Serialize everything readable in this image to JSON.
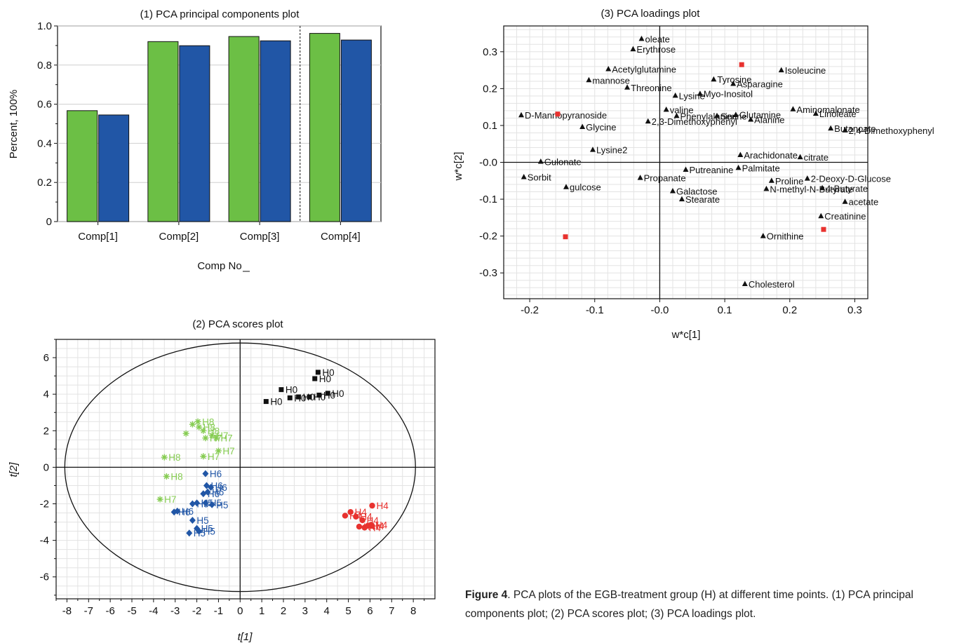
{
  "colors": {
    "green": "#6cbf45",
    "blue": "#2156a6",
    "black": "#111111",
    "red": "#e8322f",
    "lightgreen": "#86cc52",
    "grid": "#dddddd"
  },
  "caption": {
    "label": "Figure 4",
    "text": ". PCA plots of the EGB-treatment group (H) at different time points. (1) PCA principal components plot; (2) PCA scores plot; (3) PCA loadings plot."
  },
  "chart_data": [
    {
      "type": "bar",
      "title": "(1) PCA principal components plot",
      "xlabel": "Comp No",
      "ylabel": "Percent, 100%",
      "ylim": [
        0,
        1.0
      ],
      "yticks": [
        "0",
        "0.2",
        "0.4",
        "0.6",
        "0.8",
        "1.0"
      ],
      "categories": [
        "Comp[1]",
        "Comp[2]",
        "Comp[3]",
        "Comp[4]"
      ],
      "series": [
        {
          "color": "#6cbf45",
          "values": [
            0.567,
            0.92,
            0.946,
            0.962
          ]
        },
        {
          "color": "#2156a6",
          "values": [
            0.545,
            0.899,
            0.924,
            0.928
          ]
        }
      ],
      "divider_after": 3
    },
    {
      "type": "scatter",
      "title": "(2) PCA scores plot",
      "xlabel": "t[1]",
      "ylabel": "t[2]",
      "xlim": [
        -8.5,
        9
      ],
      "ylim": [
        -7.2,
        7
      ],
      "xticks": [
        -8,
        -7,
        -6,
        -5,
        -4,
        -3,
        -2,
        -1,
        0,
        1,
        2,
        3,
        4,
        5,
        6,
        7,
        8
      ],
      "yticks": [
        -6,
        -4,
        -2,
        0,
        2,
        4,
        6
      ],
      "ellipse": {
        "rx": 8.1,
        "ry": 6.8
      },
      "groups": [
        {
          "marker": "square",
          "color": "#111111",
          "points": [
            {
              "x": 1.2,
              "y": 3.6,
              "label": "H0"
            },
            {
              "x": 1.9,
              "y": 4.25,
              "label": "H0"
            },
            {
              "x": 2.3,
              "y": 3.8,
              "label": "H0"
            },
            {
              "x": 2.7,
              "y": 3.85,
              "label": "H0"
            },
            {
              "x": 3.2,
              "y": 3.85,
              "label": "H0"
            },
            {
              "x": 3.45,
              "y": 4.85,
              "label": "H0"
            },
            {
              "x": 3.6,
              "y": 5.2,
              "label": "H0"
            },
            {
              "x": 3.65,
              "y": 3.95,
              "label": "H0"
            },
            {
              "x": 4.05,
              "y": 4.05,
              "label": "H0"
            }
          ]
        },
        {
          "marker": "asterisk",
          "color": "#86cc52",
          "points": [
            {
              "x": -3.5,
              "y": 0.55,
              "label": "H8"
            },
            {
              "x": -3.4,
              "y": -0.5,
              "label": "H8"
            },
            {
              "x": -3.7,
              "y": -1.75,
              "label": "H7"
            },
            {
              "x": -1.7,
              "y": 0.6,
              "label": "H7"
            },
            {
              "x": -1.0,
              "y": 0.9,
              "label": "H7"
            },
            {
              "x": -2.5,
              "y": 1.85,
              "label": ""
            },
            {
              "x": -2.2,
              "y": 2.35,
              "label": ""
            },
            {
              "x": -1.95,
              "y": 2.5,
              "label": "H8"
            },
            {
              "x": -1.9,
              "y": 2.2,
              "label": "H8"
            },
            {
              "x": -1.7,
              "y": 2.0,
              "label": "H8"
            },
            {
              "x": -1.6,
              "y": 1.6,
              "label": "H7"
            },
            {
              "x": -1.3,
              "y": 1.75,
              "label": "H7"
            },
            {
              "x": -1.1,
              "y": 1.6,
              "label": "H7"
            }
          ]
        },
        {
          "marker": "diamond",
          "color": "#2156a6",
          "points": [
            {
              "x": -1.6,
              "y": -0.35,
              "label": "H6"
            },
            {
              "x": -1.55,
              "y": -1.0,
              "label": "H6"
            },
            {
              "x": -1.35,
              "y": -1.1,
              "label": "H6"
            },
            {
              "x": -1.5,
              "y": -1.35,
              "label": "H6"
            },
            {
              "x": -1.7,
              "y": -1.45,
              "label": "H6"
            },
            {
              "x": -2.0,
              "y": -1.95,
              "label": "H5"
            },
            {
              "x": -1.6,
              "y": -1.95,
              "label": "H5"
            },
            {
              "x": -1.3,
              "y": -2.05,
              "label": "H5"
            },
            {
              "x": -2.2,
              "y": -2.0,
              "label": "H5"
            },
            {
              "x": -2.9,
              "y": -2.4,
              "label": "H6"
            },
            {
              "x": -3.05,
              "y": -2.45,
              "label": "H6"
            },
            {
              "x": -2.2,
              "y": -2.9,
              "label": "H5"
            },
            {
              "x": -2.0,
              "y": -3.35,
              "label": "H5"
            },
            {
              "x": -1.9,
              "y": -3.5,
              "label": "H5"
            },
            {
              "x": -2.35,
              "y": -3.6,
              "label": "H5"
            }
          ]
        },
        {
          "marker": "circle",
          "color": "#e8322f",
          "points": [
            {
              "x": 6.1,
              "y": -2.1,
              "label": "H4"
            },
            {
              "x": 4.85,
              "y": -2.65,
              "label": "H4"
            },
            {
              "x": 5.1,
              "y": -2.45,
              "label": "H4"
            },
            {
              "x": 5.35,
              "y": -2.7,
              "label": "H4"
            },
            {
              "x": 5.65,
              "y": -2.9,
              "label": "H4"
            },
            {
              "x": 5.5,
              "y": -3.25,
              "label": "H4"
            },
            {
              "x": 5.75,
              "y": -3.3,
              "label": "H4"
            },
            {
              "x": 5.9,
              "y": -3.2,
              "label": "H4"
            },
            {
              "x": 6.05,
              "y": -3.15,
              "label": "H4"
            }
          ]
        }
      ]
    },
    {
      "type": "scatter",
      "title": "(3) PCA loadings plot",
      "xlabel": "w*c[1]",
      "ylabel": "w*c[2]",
      "xlim": [
        -0.24,
        0.32
      ],
      "ylim": [
        -0.37,
        0.37
      ],
      "xticks": [
        "-0.2",
        "-0.1",
        "-0.0",
        "0.1",
        "0.2",
        "0.3"
      ],
      "xtick_values": [
        -0.2,
        -0.1,
        0,
        0.1,
        0.2,
        0.3
      ],
      "yticks": [
        "0.3",
        "0.2",
        "0.1",
        "-0.0",
        "-0.1",
        "-0.2",
        "-0.3"
      ],
      "ytick_values": [
        0.3,
        0.2,
        0.1,
        0,
        -0.1,
        -0.2,
        -0.3
      ],
      "variables": [
        {
          "x": -0.028,
          "y": 0.335,
          "label": "oleate"
        },
        {
          "x": -0.041,
          "y": 0.307,
          "label": "Erythrose"
        },
        {
          "x": -0.079,
          "y": 0.253,
          "label": "Acetylglutamine"
        },
        {
          "x": -0.109,
          "y": 0.223,
          "label": "mannose"
        },
        {
          "x": -0.05,
          "y": 0.203,
          "label": "Threonine"
        },
        {
          "x": 0.083,
          "y": 0.225,
          "label": "Tyrosine"
        },
        {
          "x": 0.113,
          "y": 0.213,
          "label": "Asparagine"
        },
        {
          "x": 0.187,
          "y": 0.25,
          "label": "Isoleucine"
        },
        {
          "x": 0.024,
          "y": 0.181,
          "label": "Lysine"
        },
        {
          "x": 0.062,
          "y": 0.186,
          "label": "Myo-Inositol"
        },
        {
          "x": 0.01,
          "y": 0.143,
          "label": "valine"
        },
        {
          "x": 0.026,
          "y": 0.126,
          "label": "Phenylalanine"
        },
        {
          "x": 0.088,
          "y": 0.126,
          "label": "Serine"
        },
        {
          "x": 0.117,
          "y": 0.129,
          "label": "Glutamine"
        },
        {
          "x": 0.14,
          "y": 0.116,
          "label": "Alanine"
        },
        {
          "x": 0.205,
          "y": 0.144,
          "label": "Aminomalonate"
        },
        {
          "x": 0.24,
          "y": 0.132,
          "label": "Linoleate"
        },
        {
          "x": 0.263,
          "y": 0.092,
          "label": "Butanoate"
        },
        {
          "x": 0.285,
          "y": 0.087,
          "label": "2,4-Dimethoxyphenyl"
        },
        {
          "x": -0.213,
          "y": 0.128,
          "label": "D-Mannopyranoside"
        },
        {
          "x": -0.119,
          "y": 0.096,
          "label": "Glycine"
        },
        {
          "x": -0.018,
          "y": 0.111,
          "label": "2,3-Dimethoxyphenyl"
        },
        {
          "x": -0.103,
          "y": 0.034,
          "label": "Lysine2"
        },
        {
          "x": 0.124,
          "y": 0.02,
          "label": "Arachidonate"
        },
        {
          "x": 0.216,
          "y": 0.014,
          "label": "citrate"
        },
        {
          "x": -0.183,
          "y": 0.002,
          "label": "Gulonate"
        },
        {
          "x": 0.04,
          "y": -0.02,
          "label": "Putreanine"
        },
        {
          "x": 0.121,
          "y": -0.015,
          "label": "Palmitate"
        },
        {
          "x": -0.209,
          "y": -0.04,
          "label": "Sorbit"
        },
        {
          "x": -0.144,
          "y": -0.067,
          "label": "gulcose"
        },
        {
          "x": -0.03,
          "y": -0.042,
          "label": "Propanate"
        },
        {
          "x": 0.172,
          "y": -0.05,
          "label": "Proline"
        },
        {
          "x": 0.227,
          "y": -0.044,
          "label": "2-Deoxy-D-Glucose"
        },
        {
          "x": 0.164,
          "y": -0.072,
          "label": "N-methyl-N-Butyrate"
        },
        {
          "x": 0.25,
          "y": -0.07,
          "label": "4-Butyrate"
        },
        {
          "x": 0.02,
          "y": -0.078,
          "label": "Galactose"
        },
        {
          "x": 0.034,
          "y": -0.1,
          "label": "Stearate"
        },
        {
          "x": 0.285,
          "y": -0.107,
          "label": "acetate"
        },
        {
          "x": 0.248,
          "y": -0.146,
          "label": "Creatinine"
        },
        {
          "x": 0.159,
          "y": -0.2,
          "label": "Ornithine"
        },
        {
          "x": 0.131,
          "y": -0.33,
          "label": "Cholesterol"
        }
      ],
      "observations": [
        {
          "x": 0.126,
          "y": 0.265
        },
        {
          "x": -0.157,
          "y": 0.131
        },
        {
          "x": -0.145,
          "y": -0.202
        },
        {
          "x": 0.252,
          "y": -0.182
        }
      ]
    }
  ]
}
